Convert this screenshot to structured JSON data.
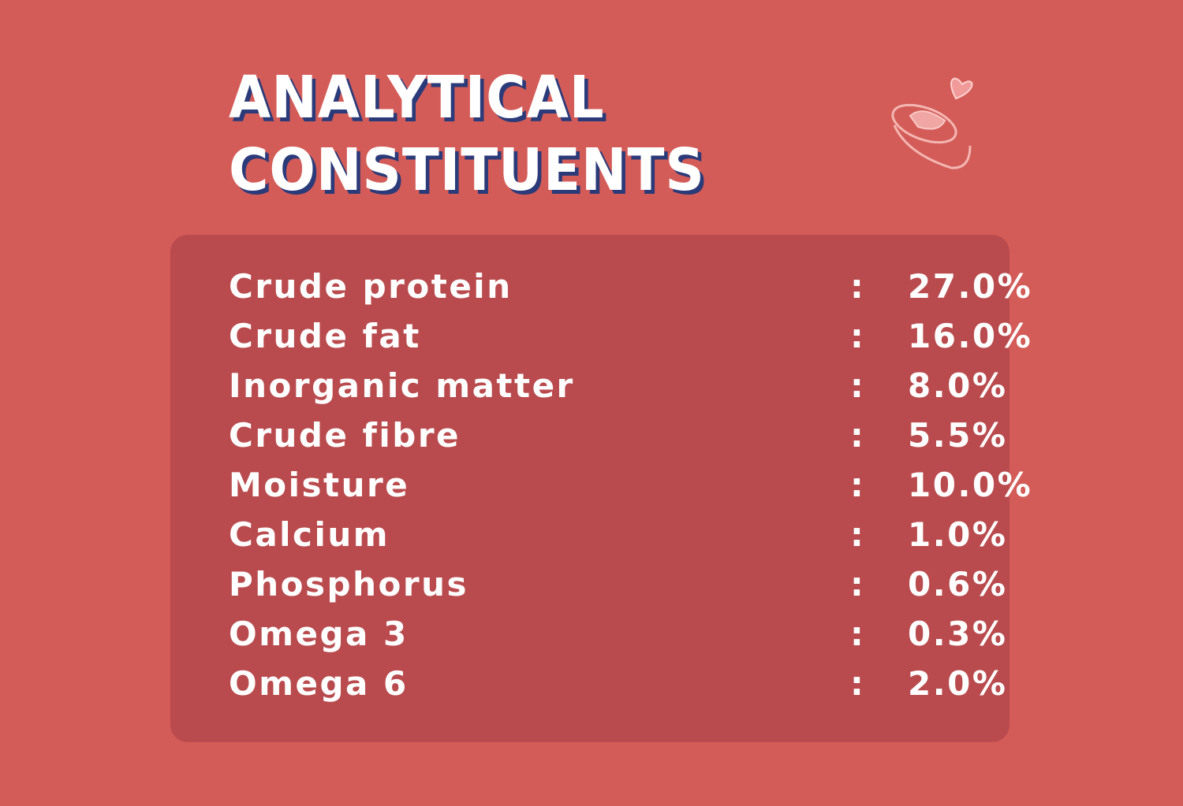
{
  "header": {
    "title_lines": [
      "ANALYTICAL",
      "CONSTITUENTS"
    ]
  },
  "table": {
    "separator": ":",
    "rows": [
      [
        "Crude protein",
        "27.0%"
      ],
      [
        "Crude fat",
        "16.0%"
      ],
      [
        "Inorganic matter",
        "8.0%"
      ],
      [
        "Crude fibre",
        "5.5%"
      ],
      [
        "Moisture",
        "10.0%"
      ],
      [
        "Calcium",
        "1.0%"
      ],
      [
        "Phosphorus",
        "0.6%"
      ],
      [
        "Omega 3",
        "0.3%"
      ],
      [
        "Omega 6",
        "2.0%"
      ]
    ]
  }
}
